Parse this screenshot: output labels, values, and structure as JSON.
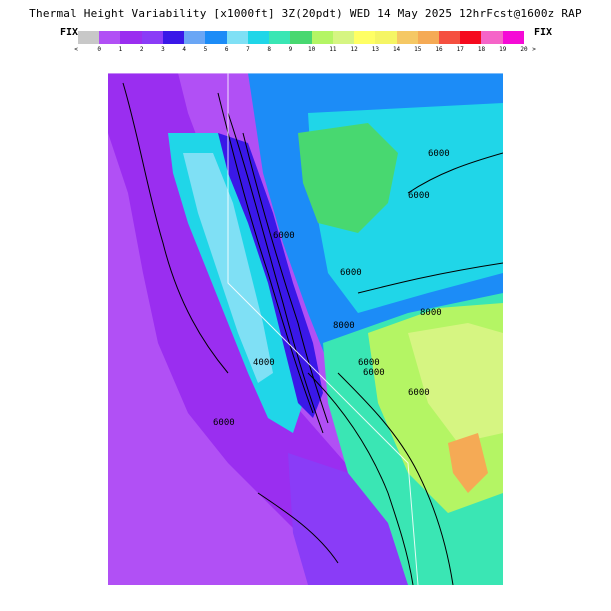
{
  "header": {
    "title": "Thermal Height Variability [x1000ft] 3Z(20pdt) WED 14 May 2025 12hrFcst@1600z RAP",
    "fix_left": "FIX",
    "fix_right": "FIX"
  },
  "legend": {
    "min_symbol": "<",
    "max_symbol": ">",
    "tick_labels": [
      "0",
      "1",
      "2",
      "3",
      "4",
      "5",
      "6",
      "7",
      "8",
      "9",
      "10",
      "11",
      "12",
      "13",
      "14",
      "15",
      "16",
      "17",
      "18",
      "19",
      "20"
    ],
    "colors": [
      "#c8c8c8",
      "#b150f5",
      "#9a2ef0",
      "#8a3cf7",
      "#3a18e8",
      "#6aa6f5",
      "#1c8cf7",
      "#7fe0f5",
      "#20d6e8",
      "#3ae6b4",
      "#48d870",
      "#b4f564",
      "#d6f582",
      "#ffff64",
      "#f5f564",
      "#f5c864",
      "#f5aa55",
      "#f55040",
      "#f50a1e",
      "#f564c8",
      "#f50ad6"
    ]
  },
  "map": {
    "contour_labels": [
      "6000",
      "6000",
      "6000",
      "6000",
      "8000",
      "8000",
      "6000",
      "4000",
      "6000",
      "6000",
      "6000"
    ]
  }
}
